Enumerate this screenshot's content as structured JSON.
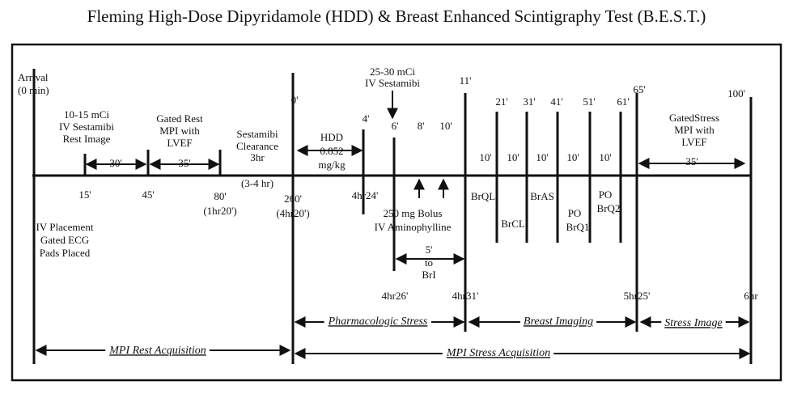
{
  "title": "Fleming High-Dose Dipyridamole (HDD) & Breast Enhanced Scintigraphy Test (B.E.S.T.)",
  "arrival": [
    "Arrival",
    "(0 min)"
  ],
  "iv_placement": [
    "IV Placement",
    "Gated ECG",
    "Pads Placed"
  ],
  "rest_dose": [
    "10-15 mCi",
    "IV Sestamibi",
    "Rest Image"
  ],
  "gated_rest": [
    "Gated Rest",
    "MPI with",
    "LVEF"
  ],
  "clearance": [
    "Sestamibi",
    "Clearance",
    "3hr",
    "(3-4 hr)"
  ],
  "hdd": [
    "HDD",
    "0.852",
    "mg/kg"
  ],
  "stress_dose": [
    "25-30 mCi",
    "IV Sestamibi"
  ],
  "aminophylline": [
    "250 mg Bolus",
    "IV Aminophylline"
  ],
  "delay": [
    "5'",
    "to",
    "BrI"
  ],
  "gated_stress": [
    "GatedStress",
    "MPI with",
    "LVEF"
  ],
  "intervals": [
    "30'",
    "35'",
    "35'"
  ],
  "top_times": [
    "0'",
    "4'",
    "6'",
    "8'",
    "10'",
    "11'",
    "21'",
    "31'",
    "41'",
    "51'",
    "61'",
    "65'",
    "100'"
  ],
  "bottom_times": [
    "15'",
    "45'",
    "80'",
    "(1hr20')",
    "260'",
    "(4hr20')",
    "4hr24'"
  ],
  "breast_intervals": [
    "10'",
    "10'",
    "10'",
    "10'",
    "10'"
  ],
  "views": [
    "BrQL",
    "BrCL",
    "BrAS",
    "PO",
    "BrQ1",
    "PO",
    "BrQ2"
  ],
  "end_times": [
    "4hr26'",
    "4hr31'",
    "5hr25'",
    "6hr"
  ],
  "phases": [
    "Pharmacologic Stress",
    "Breast Imaging",
    "Stress Image",
    "MPI Rest Acquisition",
    "MPI Stress Acquisition"
  ]
}
